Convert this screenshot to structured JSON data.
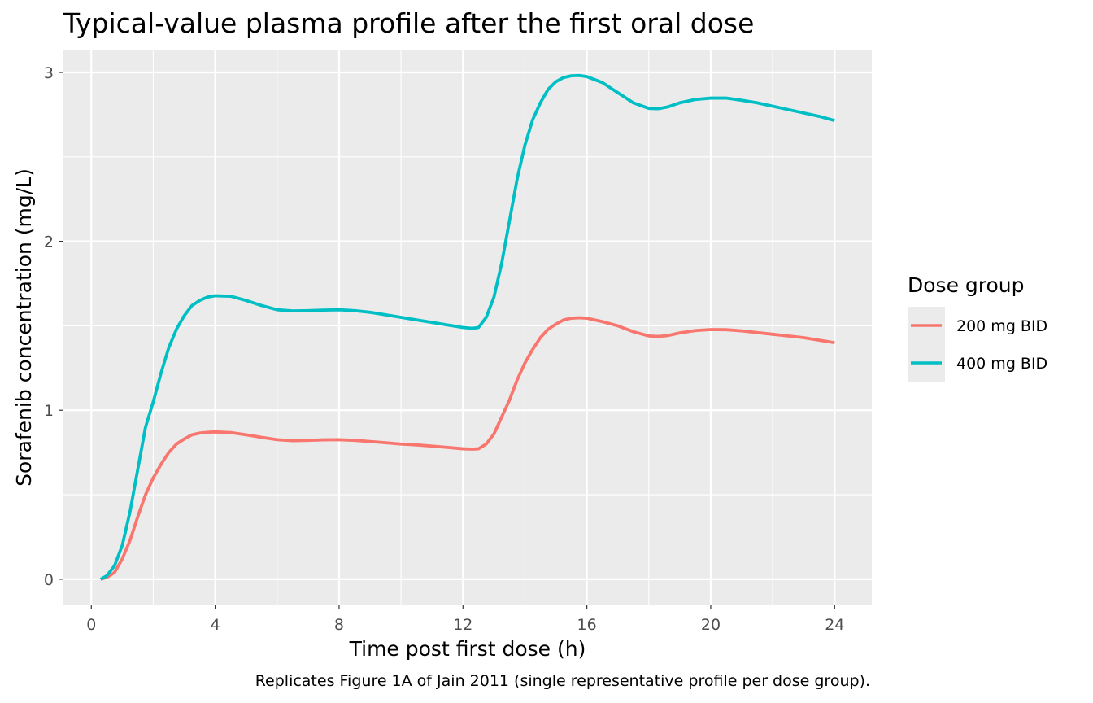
{
  "chart_data": {
    "type": "line",
    "title": "Typical-value plasma profile after the first oral dose",
    "xlabel": "Time post first dose (h)",
    "ylabel": "Sorafenib concentration (mg/L)",
    "caption": "Replicates Figure 1A of Jain 2011 (single representative profile per dose group).",
    "xlim": [
      -0.9,
      25.2
    ],
    "ylim": [
      -0.15,
      3.13
    ],
    "x_ticks": [
      0,
      4,
      8,
      12,
      16,
      20,
      24
    ],
    "x_tick_labels": [
      "0",
      "4",
      "8",
      "12",
      "16",
      "20",
      "24"
    ],
    "y_ticks": [
      0,
      1,
      2,
      3
    ],
    "y_tick_labels": [
      "0",
      "1",
      "2",
      "3"
    ],
    "grid": true,
    "legend": {
      "title": "Dose group",
      "position": "right"
    },
    "series": [
      {
        "name": "200 mg BID",
        "color": "#F8766D",
        "x": [
          0.3,
          0.5,
          0.75,
          1.0,
          1.25,
          1.5,
          1.75,
          2.0,
          2.25,
          2.5,
          2.75,
          3.0,
          3.25,
          3.5,
          3.75,
          4.0,
          4.5,
          5.0,
          5.5,
          6.0,
          6.5,
          7.0,
          7.5,
          8.0,
          8.5,
          9.0,
          9.5,
          10.0,
          10.5,
          11.0,
          11.5,
          12.0,
          12.3,
          12.5,
          12.75,
          13.0,
          13.25,
          13.5,
          13.75,
          14.0,
          14.25,
          14.5,
          14.75,
          15.0,
          15.25,
          15.5,
          15.75,
          16.0,
          16.5,
          17.0,
          17.5,
          18.0,
          18.3,
          18.6,
          19.0,
          19.5,
          20.0,
          20.5,
          21.0,
          21.5,
          22.0,
          22.5,
          23.0,
          23.5,
          24.0
        ],
        "values": [
          0.0,
          0.01,
          0.04,
          0.12,
          0.23,
          0.37,
          0.5,
          0.6,
          0.68,
          0.75,
          0.8,
          0.83,
          0.855,
          0.865,
          0.87,
          0.872,
          0.868,
          0.855,
          0.84,
          0.826,
          0.82,
          0.822,
          0.825,
          0.826,
          0.822,
          0.815,
          0.808,
          0.8,
          0.795,
          0.788,
          0.78,
          0.772,
          0.77,
          0.772,
          0.8,
          0.86,
          0.96,
          1.06,
          1.18,
          1.28,
          1.36,
          1.43,
          1.48,
          1.51,
          1.535,
          1.545,
          1.548,
          1.545,
          1.525,
          1.5,
          1.465,
          1.44,
          1.437,
          1.442,
          1.458,
          1.472,
          1.478,
          1.477,
          1.47,
          1.46,
          1.45,
          1.44,
          1.43,
          1.415,
          1.4
        ]
      },
      {
        "name": "400 mg BID",
        "color": "#00BFC4",
        "x": [
          0.3,
          0.5,
          0.75,
          1.0,
          1.25,
          1.5,
          1.75,
          2.0,
          2.25,
          2.5,
          2.75,
          3.0,
          3.25,
          3.5,
          3.75,
          4.0,
          4.5,
          5.0,
          5.5,
          6.0,
          6.5,
          7.0,
          7.5,
          8.0,
          8.5,
          9.0,
          9.5,
          10.0,
          10.5,
          11.0,
          11.5,
          12.0,
          12.3,
          12.5,
          12.75,
          13.0,
          13.25,
          13.5,
          13.75,
          14.0,
          14.25,
          14.5,
          14.75,
          15.0,
          15.25,
          15.5,
          15.75,
          16.0,
          16.5,
          17.0,
          17.5,
          18.0,
          18.3,
          18.6,
          19.0,
          19.5,
          20.0,
          20.5,
          21.0,
          21.5,
          22.0,
          22.5,
          23.0,
          23.5,
          24.0
        ],
        "values": [
          0.0,
          0.02,
          0.08,
          0.2,
          0.4,
          0.65,
          0.9,
          1.05,
          1.22,
          1.37,
          1.48,
          1.56,
          1.62,
          1.65,
          1.67,
          1.678,
          1.675,
          1.65,
          1.62,
          1.595,
          1.588,
          1.59,
          1.593,
          1.595,
          1.59,
          1.58,
          1.565,
          1.55,
          1.535,
          1.52,
          1.505,
          1.49,
          1.485,
          1.49,
          1.55,
          1.67,
          1.87,
          2.12,
          2.37,
          2.57,
          2.72,
          2.82,
          2.9,
          2.945,
          2.97,
          2.98,
          2.982,
          2.975,
          2.94,
          2.88,
          2.82,
          2.787,
          2.785,
          2.795,
          2.82,
          2.84,
          2.848,
          2.848,
          2.835,
          2.82,
          2.8,
          2.78,
          2.76,
          2.74,
          2.715
        ]
      }
    ]
  }
}
